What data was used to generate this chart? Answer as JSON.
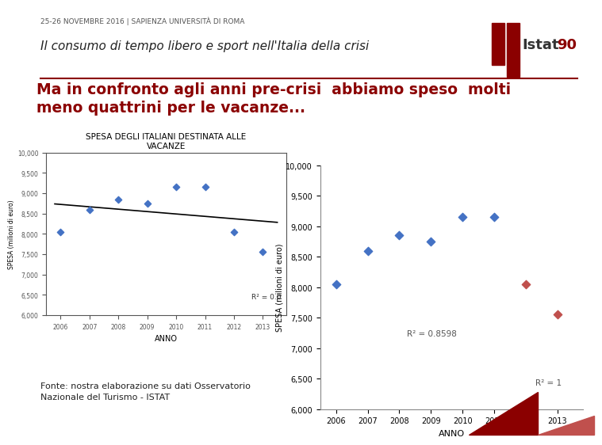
{
  "header_small": "25-26 NOVEMBRE 2016 | SAPIENZA UNIVERSITÀ DI ROMA",
  "header_large": "Il consumo di tempo libero e sport nell'Italia della crisi",
  "slide_title": "Ma in confronto agli anni pre-crisi  abbiamo speso  molti\nmeno quattrini per le vacanze...",
  "chart_title": "SPESA DEGLI ITALIANI DESTINATA ALLE\nVACANZE",
  "xlabel": "ANNO",
  "ylabel": "SPESA (milioni di euro)",
  "years": [
    2006,
    2007,
    2008,
    2009,
    2010,
    2011,
    2012,
    2013
  ],
  "values_all": [
    8050,
    8600,
    8850,
    8750,
    9150,
    9150,
    8050,
    7550
  ],
  "blue_years": [
    2006,
    2007,
    2008,
    2009,
    2010,
    2011
  ],
  "blue_vals": [
    8050,
    8600,
    8850,
    8750,
    9150,
    9150
  ],
  "red_years": [
    2012,
    2013
  ],
  "red_vals": [
    8050,
    7550
  ],
  "ylim_min": 6000,
  "ylim_max": 10000,
  "yticks": [
    6000,
    6500,
    7000,
    7500,
    8000,
    8500,
    9000,
    9500,
    10000
  ],
  "bg_color": "#ffffff",
  "header_color": "#7f0000",
  "header_line_color": "#8b0000",
  "slide_title_color": "#8b0000",
  "blue_diamond_color": "#4472c4",
  "red_diamond_color": "#c0504d",
  "trend_color_small": "#000000",
  "r2_text_small": "R² = 0.0",
  "r2_text_large1": "R² = 0.8598",
  "r2_text_large2": "R² = 1",
  "fonte_text": "Fonte: nostra elaborazione su dati Osservatorio\nNazionale del Turismo - ISTAT",
  "istat_logo_color": "#8b0000"
}
